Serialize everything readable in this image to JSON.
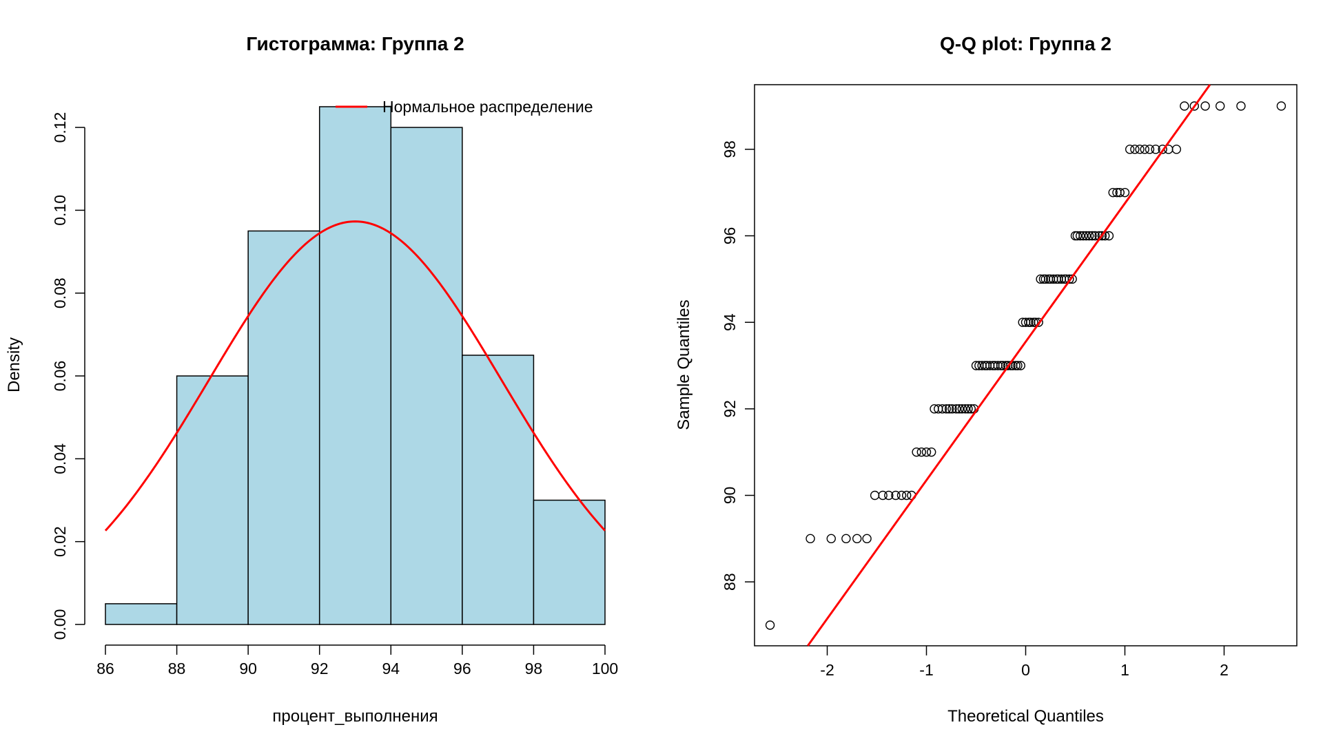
{
  "colors": {
    "bar_fill": "#add8e6",
    "bar_stroke": "#000000",
    "curve": "#ff0000",
    "line": "#ff0000",
    "points": "#000000"
  },
  "chart_data": [
    {
      "type": "bar",
      "title": "Гистограмма: Группа 2",
      "xlabel": "процент_выполнения",
      "ylabel": "Density",
      "xlim": [
        86,
        100
      ],
      "ylim": [
        0,
        0.125
      ],
      "xticks": [
        86,
        88,
        90,
        92,
        94,
        96,
        98,
        100
      ],
      "xtick_labels": [
        "86",
        "88",
        "90",
        "92",
        "94",
        "96",
        "98",
        "100"
      ],
      "yticks": [
        0,
        0.02,
        0.04,
        0.06,
        0.08,
        0.1,
        0.12
      ],
      "ytick_labels": [
        "0.00",
        "0.02",
        "0.04",
        "0.06",
        "0.08",
        "0.10",
        "0.12"
      ],
      "bins": [
        [
          86,
          88
        ],
        [
          88,
          90
        ],
        [
          90,
          92
        ],
        [
          92,
          94
        ],
        [
          94,
          96
        ],
        [
          96,
          98
        ],
        [
          98,
          100
        ]
      ],
      "values": [
        0.005,
        0.06,
        0.095,
        0.125,
        0.12,
        0.065,
        0.03
      ],
      "overlay": {
        "type": "normal-density",
        "mean": 93.0,
        "sd": 4.1,
        "from": 86,
        "to": 100
      },
      "legend": {
        "label": "Нормальное распределение",
        "position": "top-right"
      },
      "grid": false
    },
    {
      "type": "scatter",
      "title": "Q-Q plot: Группа 2",
      "xlabel": "Theoretical Quantiles",
      "ylabel": "Sample Quantiles",
      "xlim": [
        -2.58,
        2.58
      ],
      "ylim": [
        87,
        99
      ],
      "xticks": [
        -2,
        -1,
        0,
        1,
        2
      ],
      "xtick_labels": [
        "-2",
        "-1",
        "0",
        "1",
        "2"
      ],
      "yticks": [
        88,
        90,
        92,
        94,
        96,
        98
      ],
      "ytick_labels": [
        "88",
        "90",
        "92",
        "94",
        "96",
        "98"
      ],
      "x": [
        -2.576,
        -2.17,
        -1.96,
        -1.81,
        -1.7,
        -1.6,
        -1.52,
        -1.44,
        -1.38,
        -1.31,
        -1.25,
        -1.2,
        -1.15,
        -1.1,
        -1.05,
        -1.0,
        -0.95,
        -0.92,
        -0.88,
        -0.84,
        -0.8,
        -0.77,
        -0.74,
        -0.7,
        -0.67,
        -0.64,
        -0.61,
        -0.58,
        -0.55,
        -0.52,
        -0.5,
        -0.47,
        -0.44,
        -0.41,
        -0.39,
        -0.36,
        -0.33,
        -0.31,
        -0.28,
        -0.25,
        -0.23,
        -0.2,
        -0.18,
        -0.15,
        -0.13,
        -0.1,
        -0.08,
        -0.05,
        -0.03,
        0.0,
        0.03,
        0.05,
        0.08,
        0.1,
        0.13,
        0.15,
        0.18,
        0.2,
        0.23,
        0.25,
        0.28,
        0.31,
        0.33,
        0.36,
        0.39,
        0.41,
        0.44,
        0.47,
        0.5,
        0.52,
        0.55,
        0.58,
        0.61,
        0.64,
        0.67,
        0.7,
        0.74,
        0.77,
        0.8,
        0.84,
        0.88,
        0.92,
        0.95,
        1.0,
        1.05,
        1.1,
        1.15,
        1.2,
        1.25,
        1.31,
        1.38,
        1.44,
        1.52,
        1.6,
        1.7,
        1.81,
        1.96,
        2.17,
        2.576
      ],
      "y": [
        87,
        89,
        89,
        89,
        89,
        89,
        90,
        90,
        90,
        90,
        90,
        90,
        90,
        91,
        91,
        91,
        91,
        92,
        92,
        92,
        92,
        92,
        92,
        92,
        92,
        92,
        92,
        92,
        92,
        92,
        93,
        93,
        93,
        93,
        93,
        93,
        93,
        93,
        93,
        93,
        93,
        93,
        93,
        93,
        93,
        93,
        93,
        93,
        94,
        94,
        94,
        94,
        94,
        94,
        94,
        95,
        95,
        95,
        95,
        95,
        95,
        95,
        95,
        95,
        95,
        95,
        95,
        95,
        96,
        96,
        96,
        96,
        96,
        96,
        96,
        96,
        96,
        96,
        96,
        96,
        97,
        97,
        97,
        97,
        98,
        98,
        98,
        98,
        98,
        98,
        98,
        98,
        98,
        99,
        99,
        99,
        99,
        99,
        99
      ],
      "reference_line": {
        "intercept": 93.55,
        "slope": 3.2
      },
      "grid": false
    }
  ]
}
